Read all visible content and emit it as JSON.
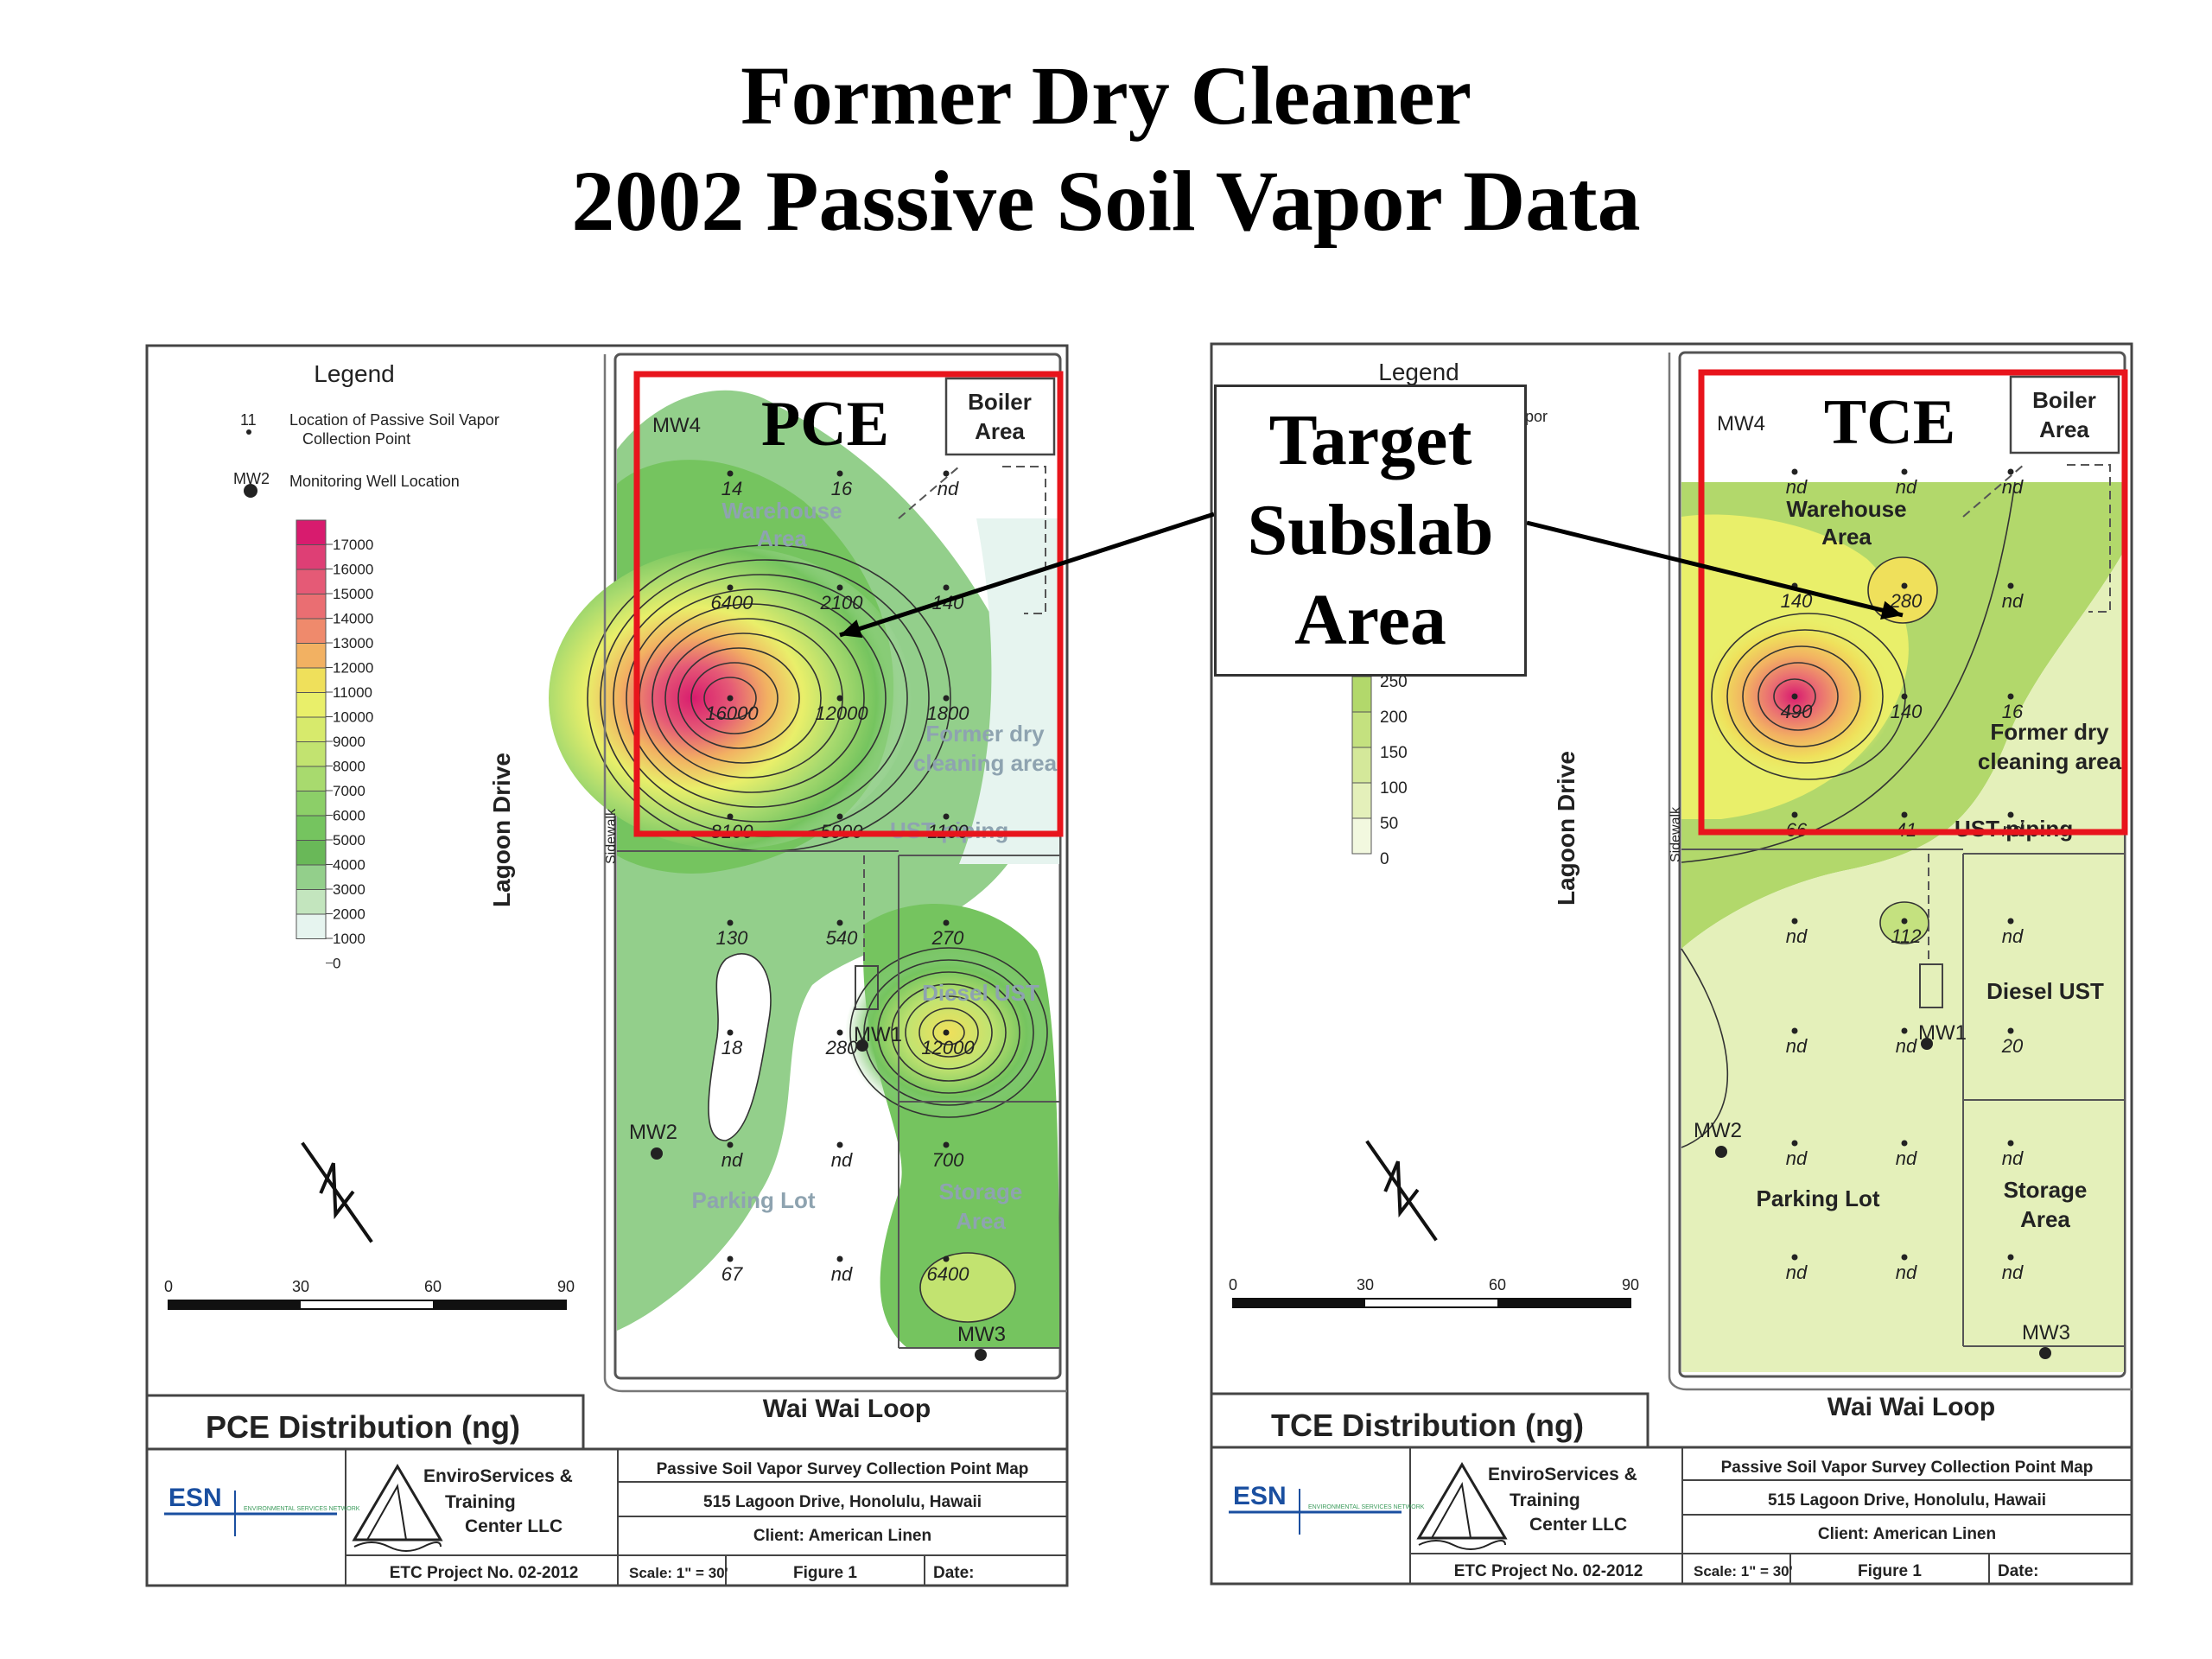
{
  "slide": {
    "title_line1": "Former Dry Cleaner",
    "title_line2": "2002 Passive Soil Vapor Data",
    "callout": [
      "Target",
      "Subslab",
      "Area"
    ],
    "highlight_color": "#e8141c"
  },
  "maps": [
    {
      "id": "pce",
      "overlay_label": "PCE",
      "legend_title": "Legend",
      "legend_items": [
        {
          "symbol": "11",
          "text": "Location of Passive Soil Vapor",
          "text2": "Collection Point"
        },
        {
          "symbol": "MW2",
          "text": "Monitoring Well Location"
        }
      ],
      "scale_values": [
        "17000",
        "16000",
        "15000",
        "14000",
        "13000",
        "12000",
        "11000",
        "10000",
        "9000",
        "8000",
        "7000",
        "6000",
        "5000",
        "4000",
        "3000",
        "2000",
        "1000",
        "0"
      ],
      "scale_colors": [
        "#d81b6e",
        "#de3f75",
        "#e55a76",
        "#ea6e72",
        "#ef8a6c",
        "#f2b162",
        "#efe05b",
        "#e9ef6a",
        "#d7ea6c",
        "#c2e370",
        "#a8da6e",
        "#8ccf68",
        "#75c45f",
        "#69b858",
        "#93cf8b",
        "#c3e5be",
        "#e6f4ef",
        "#ffffff"
      ],
      "road_left": "Lagoon Drive",
      "road_bottom": "Wai Wai Loop",
      "sidewalk": "Sidewalk",
      "areas": [
        "Warehouse",
        "Area",
        "Boiler",
        "Area",
        "Former dry",
        "cleaning area",
        "UST piping",
        "Diesel UST",
        "Parking Lot",
        "Storage",
        "Area"
      ],
      "wells": [
        "MW4",
        "MW1",
        "MW2",
        "MW3"
      ],
      "samples": [
        "14",
        "16",
        "nd",
        "6400",
        "2100",
        "140",
        "16000",
        "12000",
        "1800",
        "8100",
        "5900",
        "1100",
        "130",
        "540",
        "270",
        "18",
        "280",
        "12000",
        "nd",
        "nd",
        "700",
        "67",
        "nd",
        "6400"
      ],
      "scale_bar": [
        "0",
        "30",
        "60",
        "90"
      ],
      "distribution_title": "PCE Distribution (ng)",
      "esn_logo": "ESN",
      "esn_sub": "ENVIRONMENTAL SERVICES NETWORK",
      "company": [
        "EnviroServices &",
        "Training",
        "Center LLC"
      ],
      "info_rows": [
        "Passive Soil Vapor Survey Collection Point Map",
        "515 Lagoon Drive, Honolulu, Hawaii",
        "Client:  American Linen"
      ],
      "project": "ETC Project No. 02-2012",
      "scale_text": "Scale: 1\" = 30'",
      "figure": "Figure 1",
      "date": "Date:"
    },
    {
      "id": "tce",
      "overlay_label": "TCE",
      "legend_title": "Legend",
      "legend_fragment": "por",
      "scale_values": [
        "250",
        "200",
        "150",
        "100",
        "50",
        "0"
      ],
      "scale_colors": [
        "#b2d86b",
        "#c4e17f",
        "#d4e89a",
        "#e4f0ba",
        "#f2f8df",
        "#ffffff"
      ],
      "road_left": "Lagoon Drive",
      "road_bottom": "Wai Wai Loop",
      "sidewalk": "Sidewalk",
      "areas": [
        "Warehouse",
        "Area",
        "Boiler",
        "Area",
        "Former dry",
        "cleaning area",
        "UST piping",
        "Diesel UST",
        "Parking Lot",
        "Storage",
        "Area"
      ],
      "wells": [
        "MW4",
        "MW1",
        "MW2",
        "MW3"
      ],
      "samples": [
        "nd",
        "nd",
        "nd",
        "140",
        "280",
        "nd",
        "490",
        "140",
        "16",
        "66",
        "41",
        "nd",
        "nd",
        "112",
        "nd",
        "nd",
        "nd",
        "20",
        "nd",
        "nd",
        "nd",
        "nd",
        "nd",
        "nd"
      ],
      "scale_bar": [
        "0",
        "30",
        "60",
        "90"
      ],
      "distribution_title": "TCE Distribution (ng)",
      "esn_logo": "ESN",
      "esn_sub": "ENVIRONMENTAL SERVICES NETWORK",
      "company": [
        "EnviroServices &",
        "Training",
        "Center LLC"
      ],
      "info_rows": [
        "Passive Soil Vapor Survey Collection Point Map",
        "515 Lagoon Drive, Honolulu, Hawaii",
        "Client:  American Linen"
      ],
      "project": "ETC Project No. 02-2012",
      "scale_text": "Scale: 1\" = 30'",
      "figure": "Figure 1",
      "date": "Date:"
    }
  ]
}
